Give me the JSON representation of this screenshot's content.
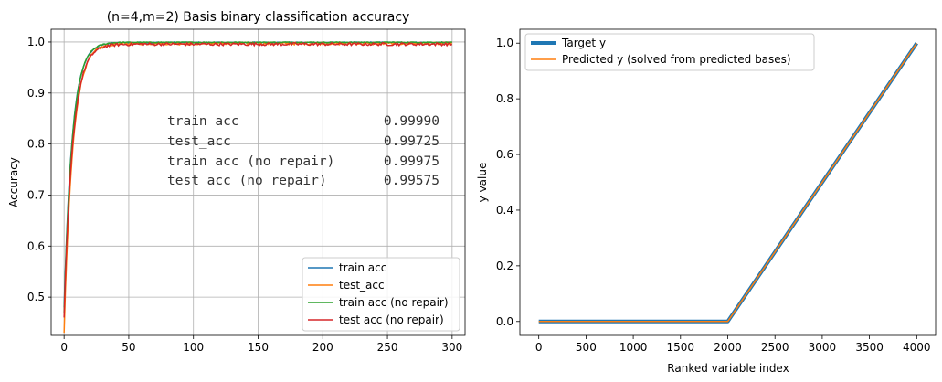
{
  "chart_data": [
    {
      "type": "line",
      "title": "(n=4,m=2) Basis binary classification accuracy",
      "xlabel": "",
      "ylabel": "Accuracy",
      "xlim": [
        -10,
        310
      ],
      "ylim": [
        0.425,
        1.025
      ],
      "xticks": [
        0,
        50,
        100,
        150,
        200,
        250,
        300
      ],
      "yticks": [
        0.5,
        0.6,
        0.7,
        0.8,
        0.9,
        1.0
      ],
      "ytick_labels": [
        "0.5",
        "0.6",
        "0.7",
        "0.8",
        "0.9",
        "1.0"
      ],
      "grid": true,
      "legend_position": "lower-right",
      "series": [
        {
          "name": "train acc",
          "color": "#1f77b4",
          "start": 0.48,
          "plateau": 0.999,
          "rate": 0.16,
          "noise": 0.0012
        },
        {
          "name": "test_acc",
          "color": "#ff7f0e",
          "start": 0.43,
          "plateau": 0.997,
          "rate": 0.15,
          "noise": 0.0025
        },
        {
          "name": "train acc (no repair)",
          "color": "#2ca02c",
          "start": 0.47,
          "plateau": 0.9995,
          "rate": 0.16,
          "noise": 0.0012
        },
        {
          "name": "test acc (no repair)",
          "color": "#d62728",
          "start": 0.46,
          "plateau": 0.9958,
          "rate": 0.15,
          "noise": 0.0028
        }
      ],
      "annotation_rows": [
        {
          "label": "train acc",
          "value": "0.99990"
        },
        {
          "label": "test_acc",
          "value": "0.99725"
        },
        {
          "label": "train acc (no repair)",
          "value": "0.99975"
        },
        {
          "label": "test acc (no repair)",
          "value": "0.99575"
        }
      ]
    },
    {
      "type": "line",
      "title": "",
      "xlabel": "Ranked variable index",
      "ylabel": "y value",
      "xlim": [
        -200,
        4200
      ],
      "ylim": [
        -0.05,
        1.05
      ],
      "xticks": [
        0,
        500,
        1000,
        1500,
        2000,
        2500,
        3000,
        3500,
        4000
      ],
      "yticks": [
        0.0,
        0.2,
        0.4,
        0.6,
        0.8,
        1.0
      ],
      "ytick_labels": [
        "0.0",
        "0.2",
        "0.4",
        "0.6",
        "0.8",
        "1.0"
      ],
      "grid": false,
      "legend_position": "upper-left",
      "series": [
        {
          "name": "Target y",
          "color": "#1f77b4",
          "points": [
            [
              0,
              0.0
            ],
            [
              2000,
              0.0
            ],
            [
              4000,
              1.0
            ]
          ]
        },
        {
          "name": "Predicted y (solved from predicted bases)",
          "color": "#ff7f0e",
          "points": [
            [
              0,
              0.0
            ],
            [
              2000,
              0.0
            ],
            [
              4000,
              1.0
            ]
          ]
        }
      ]
    }
  ]
}
